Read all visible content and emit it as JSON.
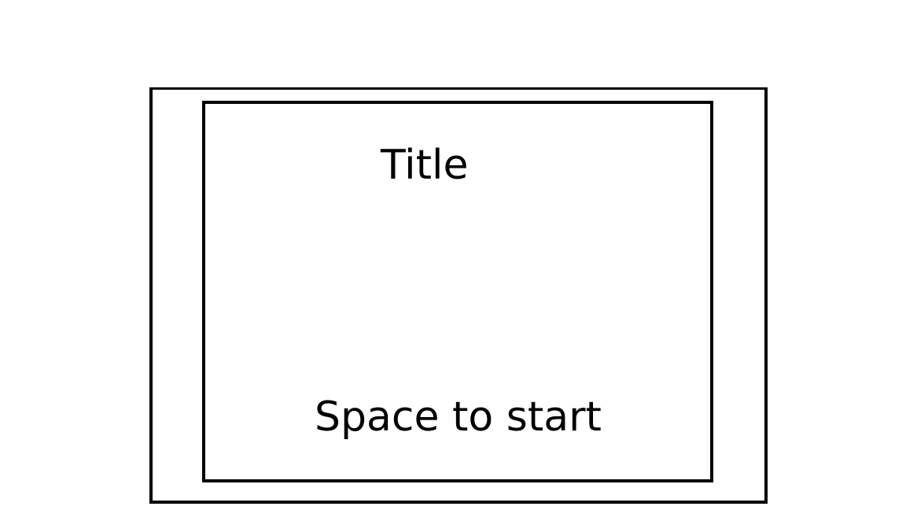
{
  "screen": {
    "title": "Title",
    "start_prompt": "Space to start"
  },
  "colors": {
    "background": "#ffffff",
    "frame": "#000000",
    "text": "#000000"
  }
}
